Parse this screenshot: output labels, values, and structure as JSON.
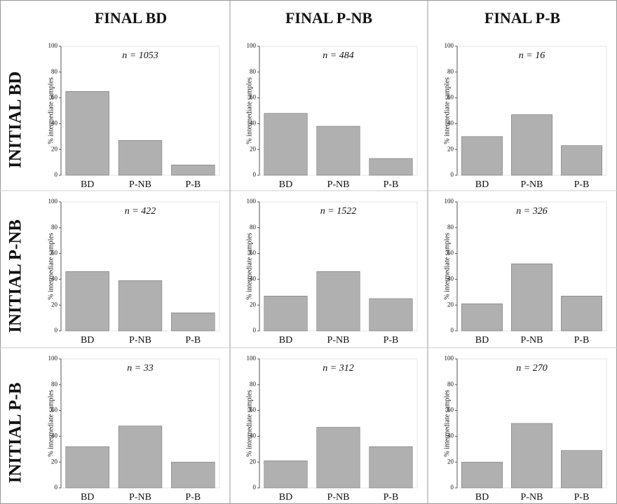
{
  "column_titles": [
    "FINAL BD",
    "FINAL P-NB",
    "FINAL P-B"
  ],
  "row_titles": [
    "INITIAL BD",
    "INITIAL P-NB",
    "INITIAL P-B"
  ],
  "chart_data": [
    {
      "type": "bar",
      "annotation": "n = 1053",
      "ylabel": "% intermediate samples",
      "categories": [
        "BD",
        "P-NB",
        "P-B"
      ],
      "values": [
        65,
        27,
        8
      ],
      "color": "#b0b0b0",
      "ylim": [
        0,
        100
      ],
      "yticks": [
        0,
        20,
        40,
        60,
        80,
        100
      ]
    },
    {
      "type": "bar",
      "annotation": "n = 484",
      "ylabel": "% intermediate samples",
      "categories": [
        "BD",
        "P-NB",
        "P-B"
      ],
      "values": [
        48,
        38,
        13
      ],
      "color": "#b0b0b0",
      "ylim": [
        0,
        100
      ],
      "yticks": [
        0,
        20,
        40,
        60,
        80,
        100
      ]
    },
    {
      "type": "bar",
      "annotation": "n = 16",
      "ylabel": "% intermediate samples",
      "categories": [
        "BD",
        "P-NB",
        "P-B"
      ],
      "values": [
        30,
        47,
        23
      ],
      "color": "#b0b0b0",
      "ylim": [
        0,
        100
      ],
      "yticks": [
        0,
        20,
        40,
        60,
        80,
        100
      ]
    },
    {
      "type": "bar",
      "annotation": "n = 422",
      "ylabel": "% intermediate samples",
      "categories": [
        "BD",
        "P-NB",
        "P-B"
      ],
      "values": [
        46,
        39,
        14
      ],
      "color": "#b0b0b0",
      "ylim": [
        0,
        100
      ],
      "yticks": [
        0,
        20,
        40,
        60,
        80,
        100
      ]
    },
    {
      "type": "bar",
      "annotation": "n = 1522",
      "ylabel": "% intermediate samples",
      "categories": [
        "BD",
        "P-NB",
        "P-B"
      ],
      "values": [
        27,
        46,
        25
      ],
      "color": "#b0b0b0",
      "ylim": [
        0,
        100
      ],
      "yticks": [
        0,
        20,
        40,
        60,
        80,
        100
      ]
    },
    {
      "type": "bar",
      "annotation": "n = 326",
      "ylabel": "% intermediate samples",
      "categories": [
        "BD",
        "P-NB",
        "P-B"
      ],
      "values": [
        21,
        52,
        27
      ],
      "color": "#b0b0b0",
      "ylim": [
        0,
        100
      ],
      "yticks": [
        0,
        20,
        40,
        60,
        80,
        100
      ]
    },
    {
      "type": "bar",
      "annotation": "n = 33",
      "ylabel": "% intermediate samples",
      "categories": [
        "BD",
        "P-NB",
        "P-B"
      ],
      "values": [
        32,
        48,
        20
      ],
      "color": "#b0b0b0",
      "ylim": [
        0,
        100
      ],
      "yticks": [
        0,
        20,
        40,
        60,
        80,
        100
      ]
    },
    {
      "type": "bar",
      "annotation": "n = 312",
      "ylabel": "% intermediate samples",
      "categories": [
        "BD",
        "P-NB",
        "P-B"
      ],
      "values": [
        21,
        47,
        32
      ],
      "color": "#b0b0b0",
      "ylim": [
        0,
        100
      ],
      "yticks": [
        0,
        20,
        40,
        60,
        80,
        100
      ]
    },
    {
      "type": "bar",
      "annotation": "n = 270",
      "ylabel": "% intermediate samples",
      "categories": [
        "BD",
        "P-NB",
        "P-B"
      ],
      "values": [
        20,
        50,
        29
      ],
      "color": "#b0b0b0",
      "ylim": [
        0,
        100
      ],
      "yticks": [
        0,
        20,
        40,
        60,
        80,
        100
      ]
    }
  ]
}
